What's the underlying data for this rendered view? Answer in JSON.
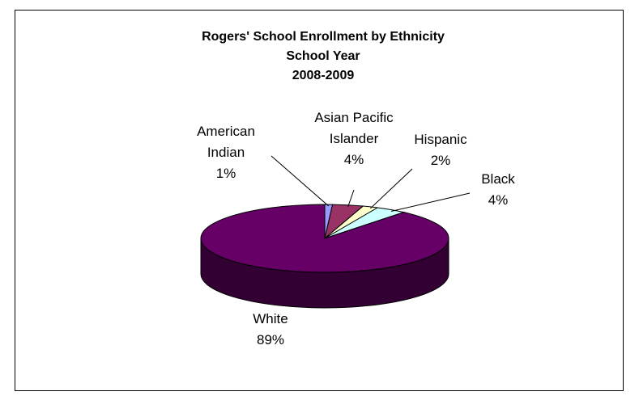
{
  "chart_data": {
    "type": "pie",
    "three_d": true,
    "title_lines": [
      "Rogers' School Enrollment by Ethnicity",
      "School Year",
      "2008-2009"
    ],
    "legend": "none",
    "slices": [
      {
        "label_lines": [
          "American",
          "Indian"
        ],
        "pct_label": "1%",
        "value": 1,
        "color": "#9999ff",
        "side_color": "#5c5c99"
      },
      {
        "label_lines": [
          "Asian Pacific",
          "Islander"
        ],
        "pct_label": "4%",
        "value": 4,
        "color": "#993366",
        "side_color": "#5c1f3d"
      },
      {
        "label_lines": [
          "Hispanic"
        ],
        "pct_label": "2%",
        "value": 2,
        "color": "#ffffcc",
        "side_color": "#99997a"
      },
      {
        "label_lines": [
          "Black"
        ],
        "pct_label": "4%",
        "value": 4,
        "color": "#ccffff",
        "side_color": "#7a9999"
      },
      {
        "label_lines": [
          "White"
        ],
        "pct_label": "89%",
        "value": 89,
        "color": "#660066",
        "side_color": "#330033"
      }
    ]
  }
}
